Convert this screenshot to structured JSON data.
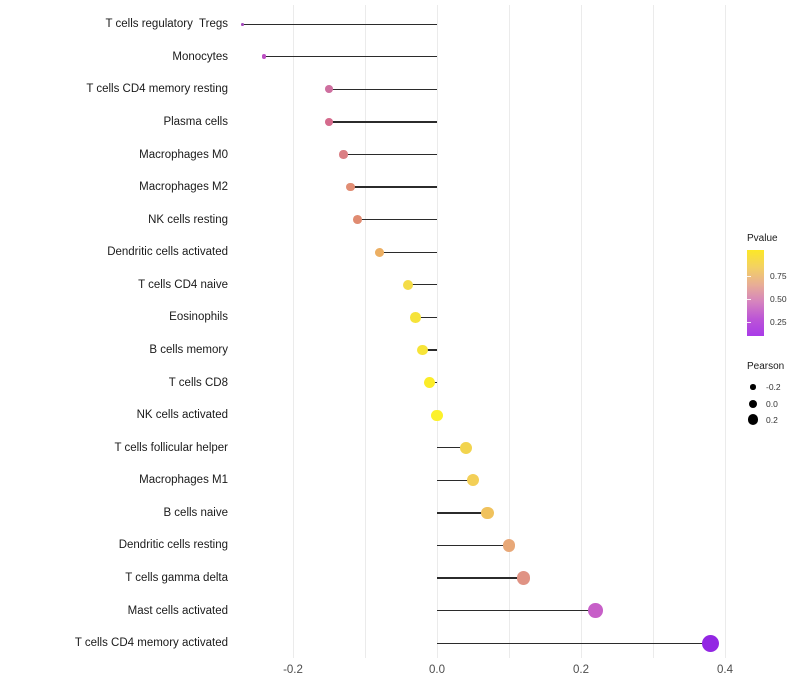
{
  "chart_data": {
    "type": "scatter",
    "variant": "horizontal-lollipop",
    "title": "",
    "xlabel": "",
    "ylabel": "",
    "xlim": [
      -0.28,
      0.41
    ],
    "grid": "vertical-only",
    "x_ticks": [
      {
        "value": -0.2,
        "label": "-0.2"
      },
      {
        "value": 0.0,
        "label": "0.0"
      },
      {
        "value": 0.2,
        "label": "0.2"
      },
      {
        "value": 0.4,
        "label": "0.4"
      }
    ],
    "gridline_values": [
      -0.2,
      -0.1,
      0.0,
      0.1,
      0.2,
      0.3,
      0.4
    ],
    "categories": [
      "T cells regulatory  Tregs",
      "Monocytes",
      "T cells CD4 memory resting",
      "Plasma cells",
      "Macrophages M0",
      "Macrophages M2",
      "NK cells resting",
      "Dendritic cells activated",
      "T cells CD4 naive",
      "Eosinophils",
      "B cells memory",
      "T cells CD8",
      "NK cells activated",
      "T cells follicular helper",
      "Macrophages M1",
      "B cells naive",
      "Dendritic cells resting",
      "T cells gamma delta",
      "Mast cells activated",
      "T cells CD4 memory activated"
    ],
    "series": [
      {
        "name": "Pearson correlation",
        "values": [
          -0.27,
          -0.24,
          -0.15,
          -0.15,
          -0.13,
          -0.12,
          -0.11,
          -0.08,
          -0.04,
          -0.03,
          -0.02,
          -0.01,
          0.0,
          0.04,
          0.05,
          0.07,
          0.1,
          0.12,
          0.22,
          0.38
        ],
        "point_colors": [
          "#A44ABC",
          "#BC4FC3",
          "#CE6F9F",
          "#D56B8D",
          "#DB7F85",
          "#E18D74",
          "#E08B71",
          "#ECAF63",
          "#F4DC48",
          "#F6E33A",
          "#F7E438",
          "#FBEC28",
          "#FCF12B",
          "#F2D44E",
          "#F3CF57",
          "#F0C25D",
          "#E8A878",
          "#E09384",
          "#C75FC8",
          "#9327E3"
        ]
      }
    ],
    "size_encoding": "Pearson",
    "color_encoding": "Pvalue",
    "legend_position": "right"
  },
  "legend": {
    "pvalue": {
      "title": "Pvalue",
      "ticks": [
        "0.75",
        "0.50",
        "0.25"
      ],
      "gradient": [
        "#FCE827",
        "#F3D163",
        "#E8AE95",
        "#D684BE",
        "#BC55D6",
        "#A93BE8"
      ]
    },
    "pearson": {
      "title": "Pearson",
      "items": [
        "-0.2",
        "0.0",
        "0.2"
      ]
    }
  }
}
